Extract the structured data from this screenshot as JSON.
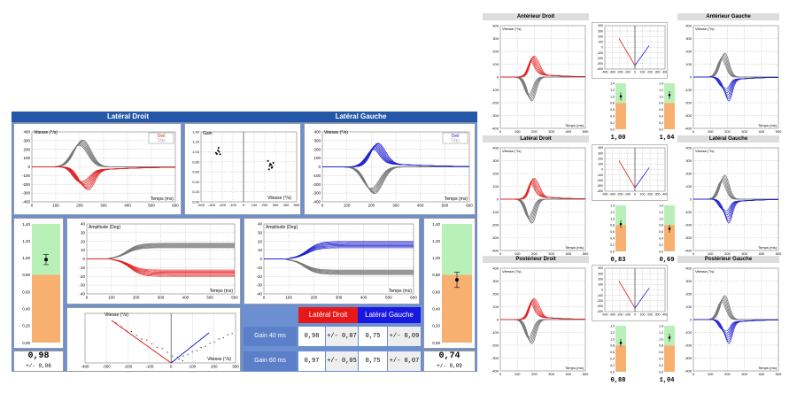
{
  "colors": {
    "right": "#e02020",
    "left": "#2020d0",
    "control": "#777777",
    "header": "#2457a8",
    "frame": "#6b8fd1"
  },
  "left_panel": {
    "header_right": "Latéral Droit",
    "header_left": "Latéral Gauche",
    "vel_ylabel": "Vitesse (°/s)",
    "time_xlabel": "Temps (ms)",
    "legend_eye": "Oeil",
    "legend_head": "Tête",
    "gain_label": "Gain",
    "gain_xlabel": "Vitesse (°/s)",
    "amp_ylabel": "Amplitude (Deg)",
    "regr_ylabel": "Vitesse (°/s)",
    "regr_xlabel": "Vitesse (°/s)",
    "vel_yticks": [
      "400",
      "300",
      "200",
      "100",
      "0",
      "-100",
      "-200",
      "-300",
      "-400"
    ],
    "time_xticks": [
      "0",
      "100",
      "200",
      "300",
      "400",
      "500",
      "600"
    ],
    "gain_yticks": [
      "1,40",
      "1,20",
      "1,00",
      "0,80",
      "0,60",
      "0,40",
      "0,20",
      "0,00"
    ],
    "gain_xticks": [
      "-400",
      "-300",
      "-200",
      "-100",
      "0",
      "100",
      "200",
      "300",
      "400",
      "500"
    ],
    "amp_yticks": [
      "40",
      "30",
      "20",
      "10",
      "0",
      "-10",
      "-20",
      "-30",
      "-40"
    ],
    "regr_xticks": [
      "-400",
      "-300",
      "-200",
      "-100",
      "0",
      "100",
      "200",
      "300"
    ],
    "bar_yticks": [
      "1,40",
      "1,20",
      "1,00",
      "0,80",
      "0,60",
      "0,40",
      "0,20",
      "0,00"
    ],
    "gain_right": {
      "value": "0,98",
      "sd": "+/- 0,06"
    },
    "gain_left": {
      "value": "0,74",
      "sd": "+/- 0,09"
    },
    "table": {
      "col_right": "Latéral Droit",
      "col_left": "Latéral Gauche",
      "rows": [
        {
          "label": "Gain   40 ms",
          "r": "0,98",
          "rsd": "+/- 0,07",
          "l": "0,75",
          "lsd": "+/- 0,09"
        },
        {
          "label": "Gain   60 ms",
          "r": "0,97",
          "rsd": "+/- 0,05",
          "l": "0,75",
          "lsd": "+/- 0,07"
        }
      ]
    }
  },
  "right_panel": {
    "vel_ylabel": "Vitesse (°/s)",
    "time_xlabel": "Temps (ms)",
    "vel_yticks": [
      "400",
      "300",
      "200",
      "100",
      "0",
      "-100",
      "-200",
      "-300",
      "-400"
    ],
    "time_xticks": [
      "0",
      "100",
      "200",
      "300",
      "400",
      "500"
    ],
    "mini_yticks": [
      "400",
      "300",
      "200",
      "100",
      "0",
      "-100",
      "-200",
      "-300",
      "-400"
    ],
    "mini_xticks": [
      "-400",
      "-300",
      "-200",
      "-100",
      "0",
      "100",
      "200",
      "300",
      "400"
    ],
    "bar_yticks": [
      "1,4",
      "1,2",
      "1,0",
      "0,8",
      "0,6",
      "0,4",
      "0,2",
      "0,0"
    ],
    "rows": [
      {
        "title_right": "Antérieur Droit",
        "title_left": "Antérieur Gauche",
        "g1": "1,00",
        "g2": "1,04"
      },
      {
        "title_right": "Latéral Droit",
        "title_left": "Latéral Gauche",
        "g1": "0,83",
        "g2": "0,69"
      },
      {
        "title_right": "Postérieur Droit",
        "title_left": "Postérieur Gauche",
        "g1": "0,88",
        "g2": "1,04"
      }
    ]
  }
}
